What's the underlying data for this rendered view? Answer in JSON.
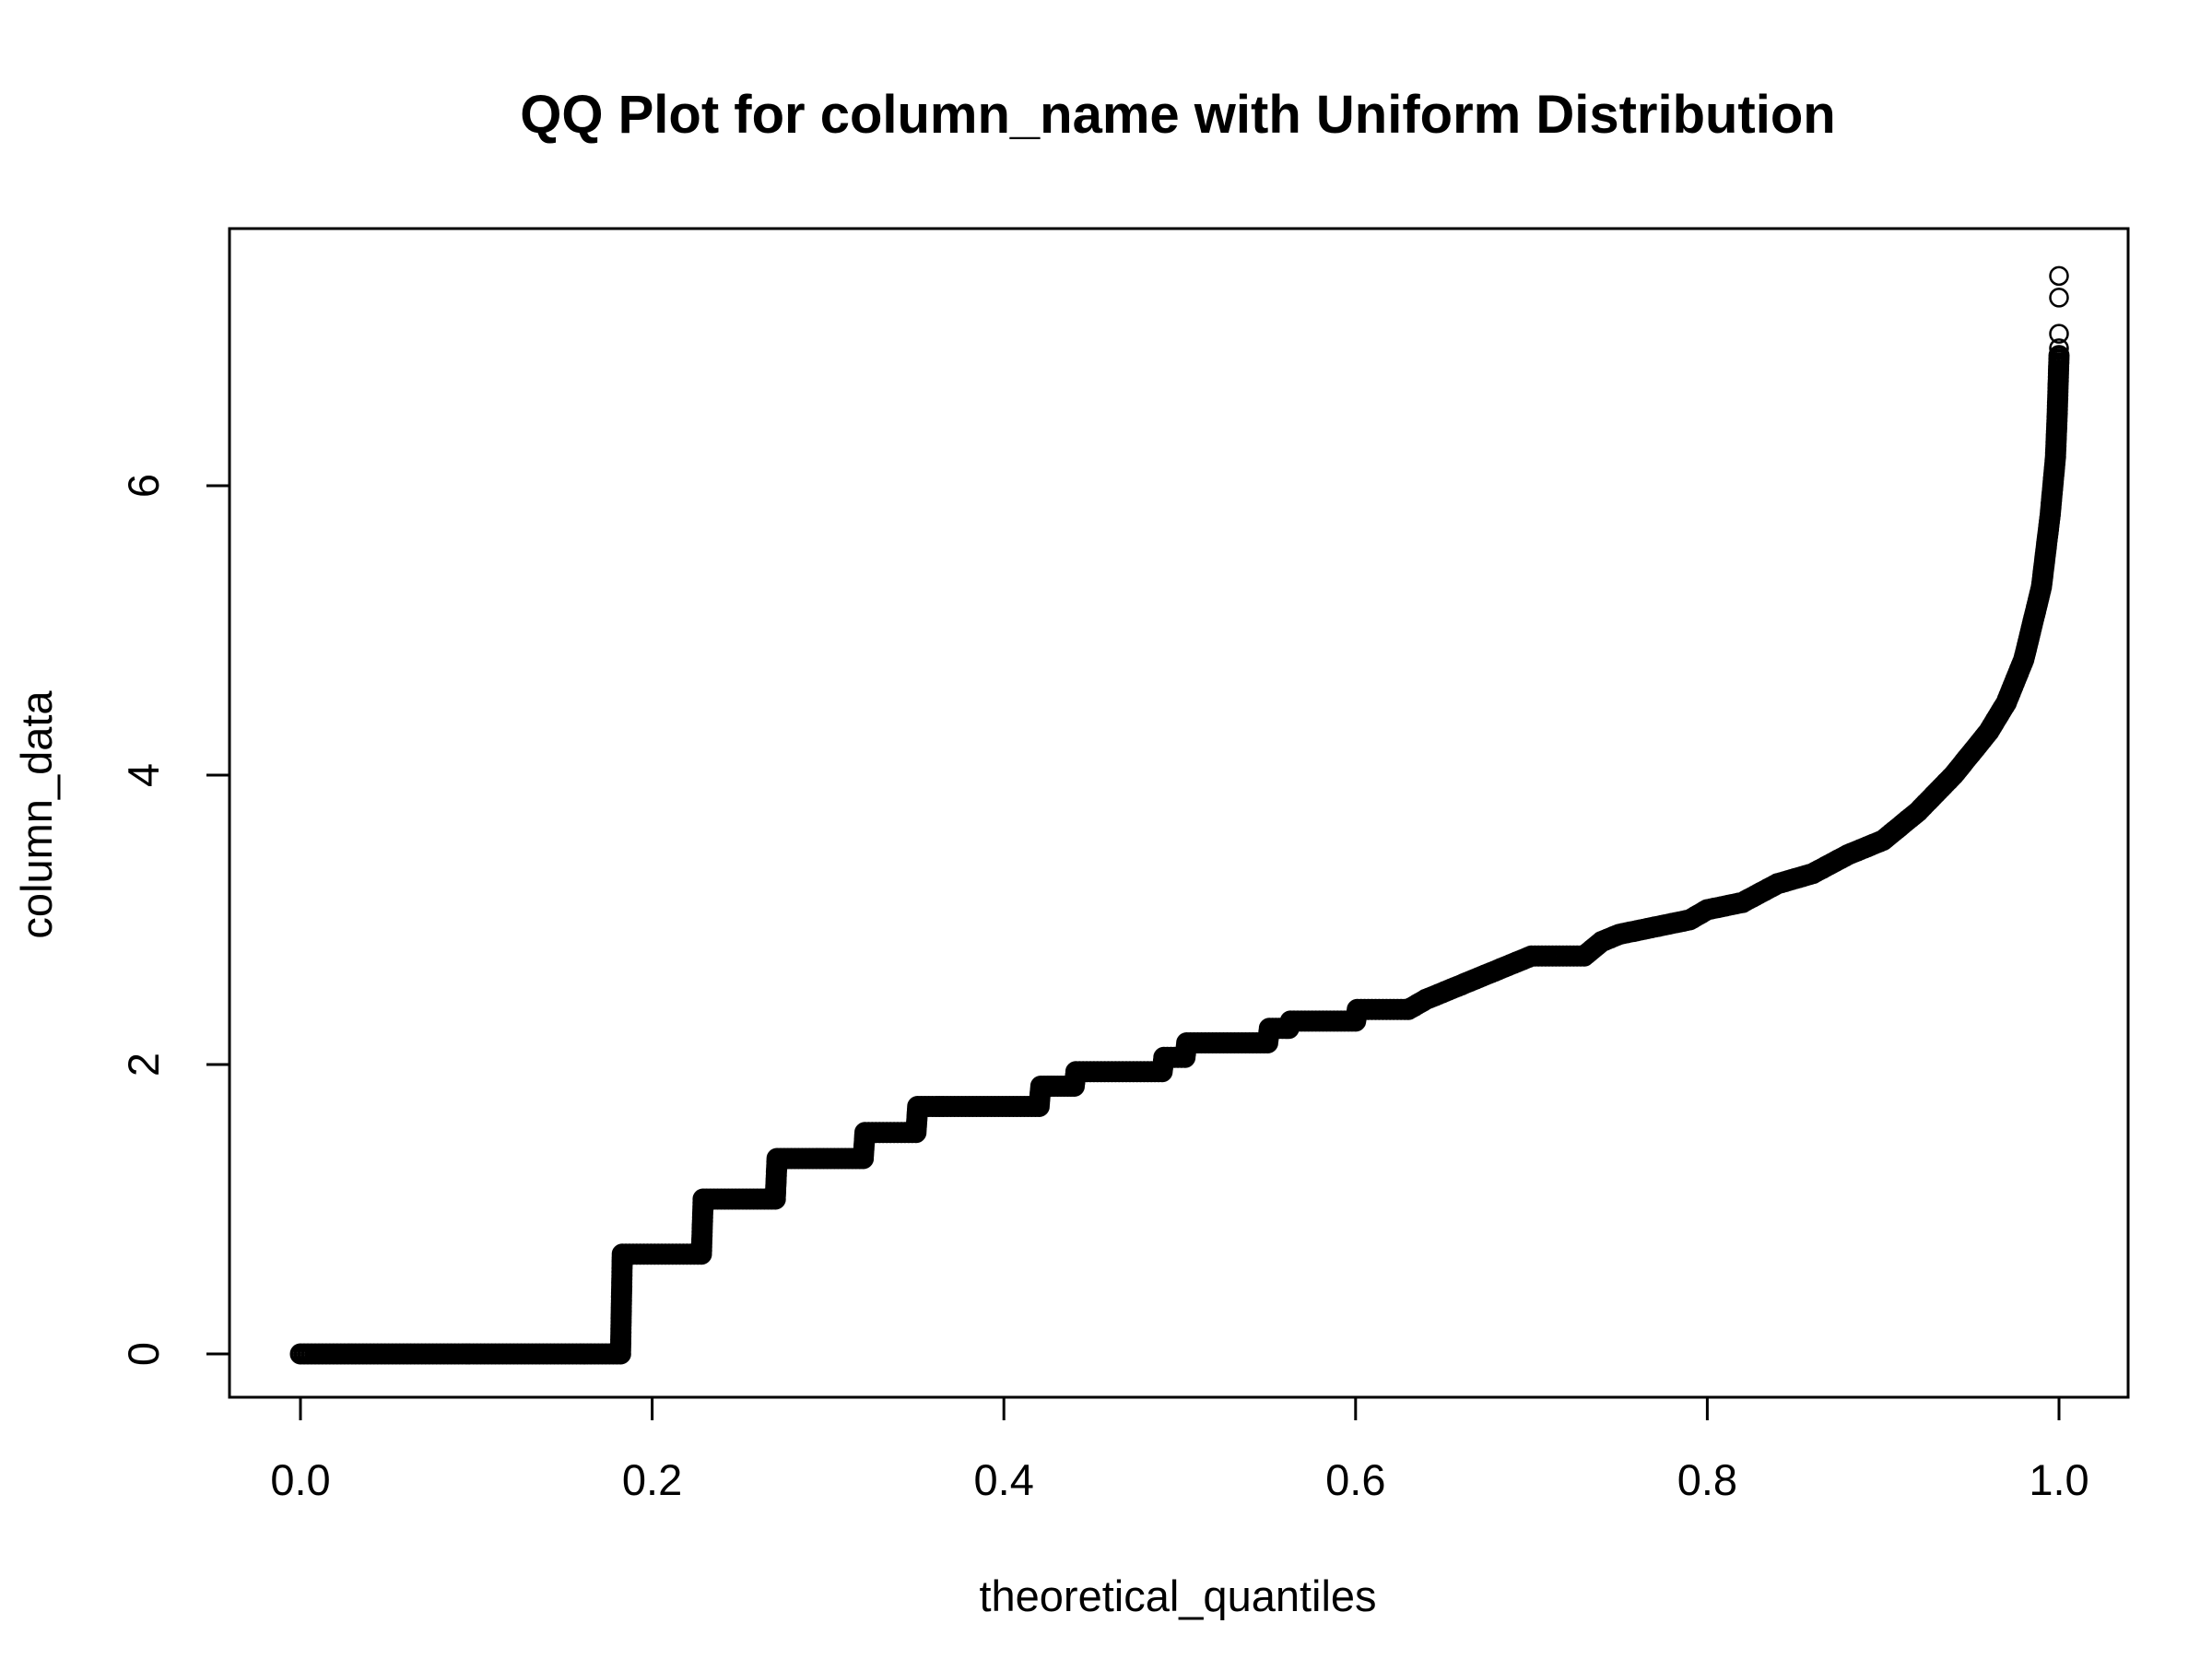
{
  "chart_data": {
    "type": "scatter",
    "title": "QQ Plot for column_name with Uniform Distribution",
    "xlabel": "theoretical_quantiles",
    "ylabel": "column_data",
    "xlim": [
      0.0,
      1.0
    ],
    "ylim": [
      0,
      7.5
    ],
    "x_ticks": [
      "0.0",
      "0.2",
      "0.4",
      "0.6",
      "0.8",
      "1.0"
    ],
    "y_ticks": [
      "0",
      "2",
      "4",
      "6"
    ],
    "grid": false,
    "legend": "none",
    "marker": "open-circle",
    "color": "#000000",
    "curve_x": [
      0.0,
      0.182,
      0.183,
      0.228,
      0.229,
      0.27,
      0.271,
      0.32,
      0.321,
      0.35,
      0.351,
      0.42,
      0.421,
      0.44,
      0.441,
      0.49,
      0.491,
      0.503,
      0.504,
      0.55,
      0.551,
      0.562,
      0.563,
      0.6,
      0.601,
      0.63,
      0.64,
      0.66,
      0.67,
      0.69,
      0.7,
      0.73,
      0.74,
      0.75,
      0.77,
      0.79,
      0.8,
      0.82,
      0.84,
      0.86,
      0.88,
      0.9,
      0.92,
      0.94,
      0.96,
      0.97,
      0.98,
      0.99,
      0.995,
      0.998,
      0.999,
      1.0
    ],
    "curve_y": [
      0.0,
      0.0,
      0.69,
      0.69,
      1.07,
      1.07,
      1.35,
      1.35,
      1.53,
      1.53,
      1.71,
      1.71,
      1.85,
      1.85,
      1.95,
      1.95,
      2.05,
      2.05,
      2.15,
      2.15,
      2.25,
      2.25,
      2.3,
      2.3,
      2.38,
      2.38,
      2.45,
      2.55,
      2.6,
      2.7,
      2.75,
      2.75,
      2.85,
      2.9,
      2.95,
      3.0,
      3.07,
      3.12,
      3.25,
      3.32,
      3.45,
      3.55,
      3.75,
      4.0,
      4.3,
      4.5,
      4.8,
      5.3,
      5.8,
      6.2,
      6.5,
      6.9
    ],
    "outliers": [
      {
        "x": 1.0,
        "y": 7.45
      },
      {
        "x": 1.0,
        "y": 7.3
      },
      {
        "x": 1.0,
        "y": 7.05
      },
      {
        "x": 1.0,
        "y": 6.95
      }
    ]
  }
}
